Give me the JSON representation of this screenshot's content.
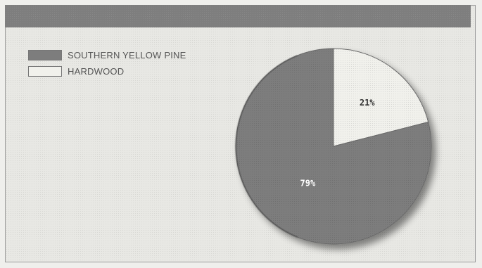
{
  "chart_data": {
    "type": "pie",
    "categories": [
      "SOUTHERN YELLOW PINE",
      "HARDWOOD"
    ],
    "values": [
      79,
      21
    ],
    "labels": [
      "79%",
      "21%"
    ],
    "colors": [
      "#7d7d7d",
      "#f1f1ec"
    ],
    "label_colors": [
      "#ffffff",
      "#333333"
    ],
    "title": "",
    "legend_position": "top-left"
  }
}
